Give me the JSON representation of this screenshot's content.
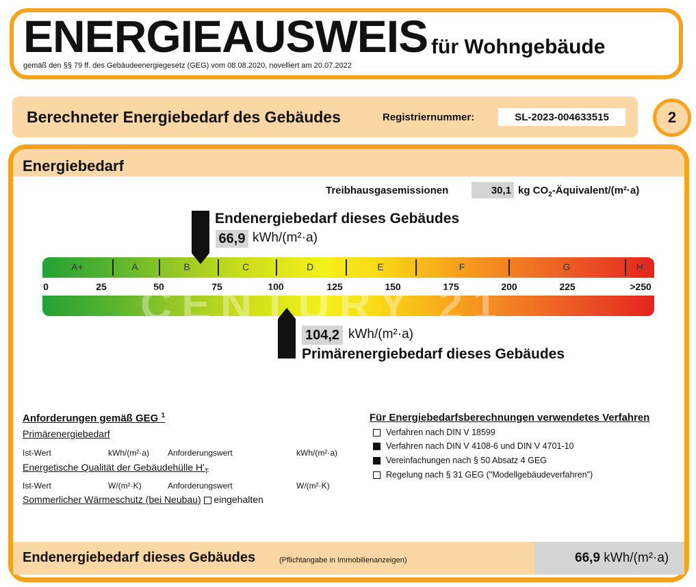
{
  "header": {
    "title": "ENERGIEAUSWEIS",
    "subtitle": "für Wohngebäude",
    "legal": "gemäß den §§ 79 ff. des Gebäudeenergiegesetz (GEG) vom 08.08.2020, novelliert am 20.07.2022"
  },
  "section": {
    "title": "Berechneter Energiebedarf des Gebäudes",
    "registration_label": "Registriernummer:",
    "registration_number": "SL-2023-004633515",
    "page_number": "2"
  },
  "energy": {
    "title": "Energiebedarf",
    "ghg_label": "Treibhausgasemissionen",
    "ghg_value": "30,1",
    "ghg_unit_prefix": "kg CO",
    "ghg_unit_sub": "2",
    "ghg_unit_suffix": "-Äquivalent/(m²·a)",
    "final_energy_title": "Endenergiebedarf dieses Gebäudes",
    "final_energy_value": "66,9",
    "final_energy_unit": "kWh/(m²·a)",
    "primary_energy_title": "Primärenergiebedarf dieses Gebäudes",
    "primary_energy_value": "104,2",
    "primary_energy_unit": "kWh/(m²·a)",
    "watermark": "CENTURY 21",
    "watermark_reg": "®",
    "classes": [
      "A+",
      "A",
      "B",
      "C",
      "D",
      "E",
      "F",
      "G",
      "H"
    ],
    "scale_ticks": [
      "0",
      "25",
      "50",
      "75",
      "100",
      "125",
      "150",
      "175",
      "200",
      "225",
      ">250"
    ]
  },
  "requirements": {
    "heading": "Anforderungen gemäß GEG",
    "heading_sup": "1",
    "primary": "Primärenergiebedarf",
    "actual_label": "Ist-Wert",
    "actual_unit_primary": "kWh/(m²·a)",
    "required_label": "Anforderungswert",
    "required_unit_primary": "kWh/(m²·a)",
    "quality": "Energetische Qualität der Gebäudehülle H'",
    "quality_sub": "T",
    "actual_unit_quality": "W/(m²·K)",
    "required_unit_quality": "W/(m²·K)",
    "summer": "Sommerlicher Wärmeschutz (bei Neubau)",
    "summer_status": "eingehalten"
  },
  "procedure": {
    "heading": "Für Energiebedarfsberechnungen verwendetes Verfahren",
    "items": [
      {
        "label": "Verfahren nach DIN V 18599",
        "checked": false
      },
      {
        "label": "Verfahren nach DIN V 4108-6 und DIN V 4701-10",
        "checked": true
      },
      {
        "label": "Vereinfachungen nach § 50 Absatz 4 GEG",
        "checked": true
      },
      {
        "label": "Regelung nach § 31 GEG (\"Modellgebäudeverfahren\")",
        "checked": false
      }
    ]
  },
  "footer": {
    "title": "Endenergiebedarf dieses Gebäudes",
    "note": "(Pflichtangabe in Immobilienanzeigen)",
    "value": "66,9",
    "unit": "kWh/(m²·a)"
  },
  "colors": {
    "frame": "#f5a21c",
    "fill": "#fbd7a6",
    "value_box": "#d4d4d4"
  }
}
